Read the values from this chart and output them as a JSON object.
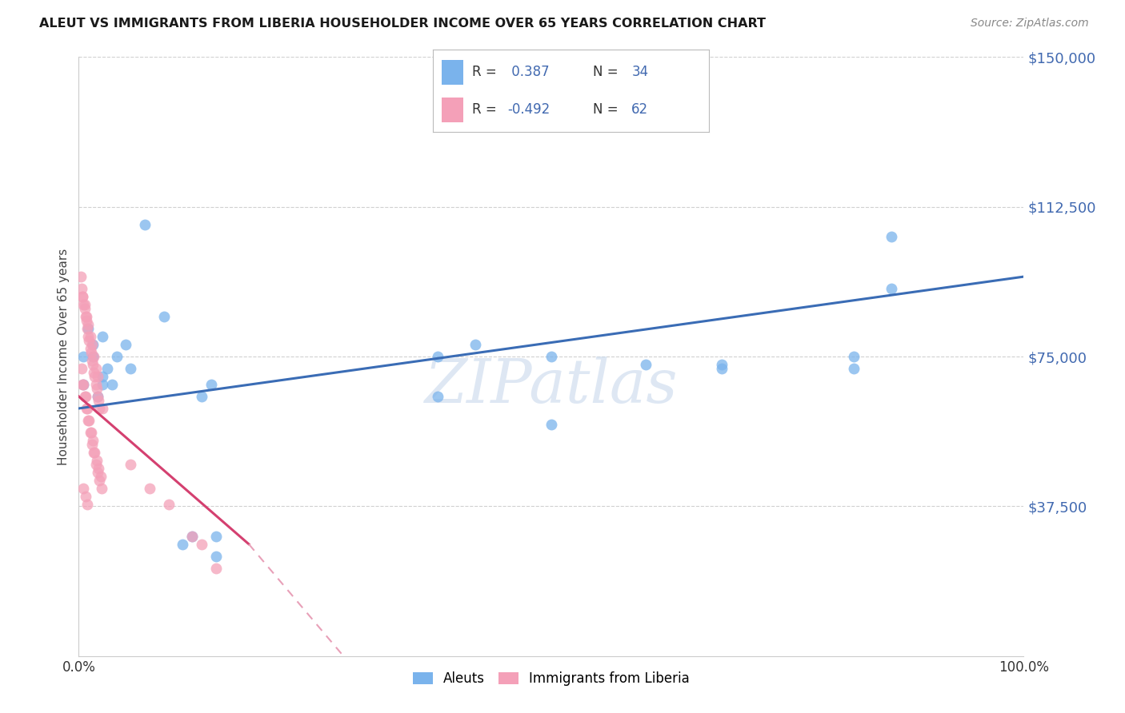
{
  "title": "ALEUT VS IMMIGRANTS FROM LIBERIA HOUSEHOLDER INCOME OVER 65 YEARS CORRELATION CHART",
  "source": "Source: ZipAtlas.com",
  "ylabel": "Householder Income Over 65 years",
  "xlim": [
    0,
    1.0
  ],
  "ylim": [
    0,
    150000
  ],
  "xticks": [
    0.0,
    0.1,
    0.2,
    0.3,
    0.4,
    0.5,
    0.6,
    0.7,
    0.8,
    0.9,
    1.0
  ],
  "xticklabels": [
    "0.0%",
    "",
    "",
    "",
    "",
    "",
    "",
    "",
    "",
    "",
    "100.0%"
  ],
  "yticks_right": [
    0,
    37500,
    75000,
    112500,
    150000
  ],
  "ytick_labels_right": [
    "",
    "$37,500",
    "$75,000",
    "$112,500",
    "$150,000"
  ],
  "aleut_color": "#7ab3ec",
  "liberia_color": "#f4a0b8",
  "aleut_line_color": "#3a6cb5",
  "liberia_line_solid_color": "#d44070",
  "liberia_line_dashed_color": "#e8a0b8",
  "watermark": "ZIPatlas",
  "watermark_color": "#c8d8ec",
  "aleut_points_x": [
    0.015,
    0.025,
    0.005,
    0.02,
    0.025,
    0.005,
    0.01,
    0.015,
    0.025,
    0.03,
    0.035,
    0.04,
    0.05,
    0.055,
    0.07,
    0.09,
    0.13,
    0.14,
    0.145,
    0.38,
    0.42,
    0.5,
    0.6,
    0.68,
    0.82,
    0.86,
    0.11,
    0.12,
    0.145,
    0.38,
    0.5,
    0.68,
    0.82,
    0.86
  ],
  "aleut_points_y": [
    75000,
    80000,
    75000,
    65000,
    70000,
    68000,
    82000,
    78000,
    68000,
    72000,
    68000,
    75000,
    78000,
    72000,
    108000,
    85000,
    65000,
    68000,
    30000,
    75000,
    78000,
    75000,
    73000,
    72000,
    75000,
    92000,
    28000,
    30000,
    25000,
    65000,
    58000,
    73000,
    72000,
    105000
  ],
  "liberia_points_x": [
    0.002,
    0.004,
    0.006,
    0.008,
    0.01,
    0.012,
    0.014,
    0.016,
    0.018,
    0.02,
    0.003,
    0.005,
    0.007,
    0.009,
    0.011,
    0.013,
    0.015,
    0.017,
    0.019,
    0.021,
    0.004,
    0.006,
    0.008,
    0.01,
    0.012,
    0.014,
    0.016,
    0.018,
    0.02,
    0.022,
    0.003,
    0.005,
    0.007,
    0.009,
    0.011,
    0.013,
    0.015,
    0.017,
    0.019,
    0.021,
    0.023,
    0.004,
    0.006,
    0.008,
    0.01,
    0.012,
    0.014,
    0.016,
    0.018,
    0.02,
    0.022,
    0.024,
    0.005,
    0.007,
    0.009,
    0.025,
    0.055,
    0.075,
    0.095,
    0.12,
    0.13,
    0.145
  ],
  "liberia_points_y": [
    95000,
    90000,
    88000,
    85000,
    83000,
    80000,
    78000,
    75000,
    72000,
    70000,
    92000,
    88000,
    85000,
    82000,
    79000,
    76000,
    73000,
    70000,
    67000,
    64000,
    90000,
    87000,
    84000,
    80000,
    77000,
    74000,
    71000,
    68000,
    65000,
    62000,
    72000,
    68000,
    65000,
    62000,
    59000,
    56000,
    54000,
    51000,
    49000,
    47000,
    45000,
    68000,
    65000,
    62000,
    59000,
    56000,
    53000,
    51000,
    48000,
    46000,
    44000,
    42000,
    42000,
    40000,
    38000,
    62000,
    48000,
    42000,
    38000,
    30000,
    28000,
    22000
  ]
}
